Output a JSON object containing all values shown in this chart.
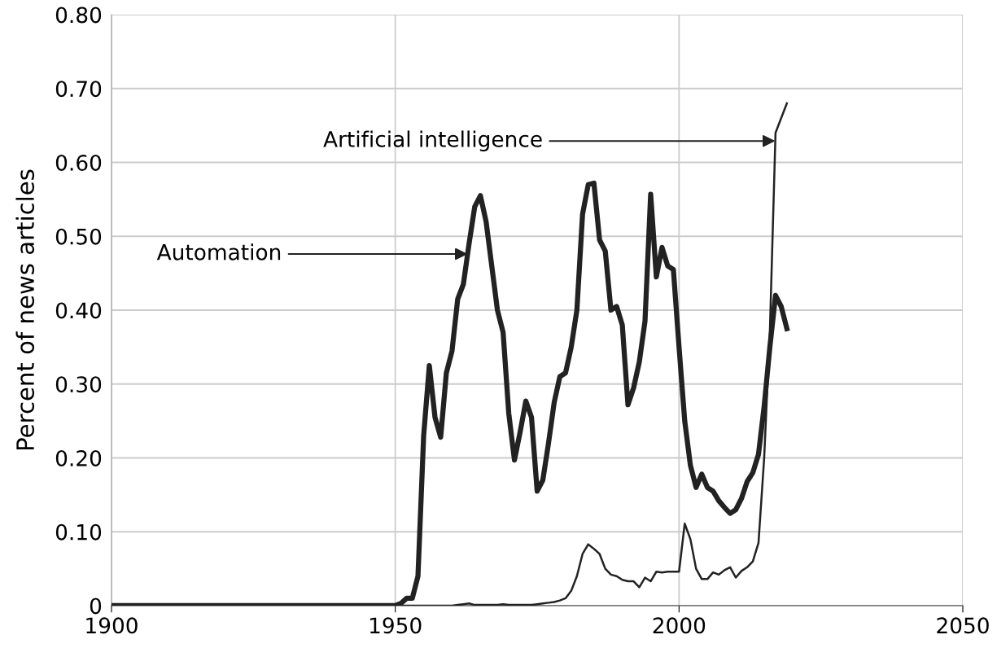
{
  "chart_data": {
    "type": "line",
    "ylabel": "Percent of news articles",
    "xlim": [
      1900,
      2050
    ],
    "xticks": [
      1900,
      1950,
      2000,
      2050
    ],
    "ylim": [
      0,
      0.8
    ],
    "yticks": [
      0,
      {
        "value": 0.1,
        "label": "0.10"
      },
      {
        "value": 0.2,
        "label": "0.20"
      },
      {
        "value": 0.3,
        "label": "0.30"
      },
      {
        "value": 0.4,
        "label": "0.40"
      },
      {
        "value": 0.5,
        "label": "0.50"
      },
      {
        "value": 0.6,
        "label": "0.60"
      },
      {
        "value": 0.7,
        "label": "0.70"
      },
      {
        "value": 0.8,
        "label": "0.80"
      }
    ],
    "grid": true,
    "marker": "none",
    "line_style": "solid",
    "x": [
      1900,
      1920,
      1940,
      1950,
      1951,
      1952,
      1953,
      1954,
      1955,
      1956,
      1957,
      1958,
      1959,
      1960,
      1961,
      1962,
      1963,
      1964,
      1965,
      1966,
      1967,
      1968,
      1969,
      1970,
      1971,
      1972,
      1973,
      1974,
      1975,
      1976,
      1977,
      1978,
      1979,
      1980,
      1981,
      1982,
      1983,
      1984,
      1985,
      1986,
      1987,
      1988,
      1989,
      1990,
      1991,
      1992,
      1993,
      1994,
      1995,
      1996,
      1997,
      1998,
      1999,
      2000,
      2001,
      2002,
      2003,
      2004,
      2005,
      2006,
      2007,
      2008,
      2009,
      2010,
      2011,
      2012,
      2013,
      2014,
      2015,
      2016,
      2017,
      2018,
      2019
    ],
    "series": [
      {
        "color": "#222222",
        "values": [
          0,
          0,
          0,
          0,
          0.003,
          0.01,
          0.01,
          0.04,
          0.23,
          0.325,
          0.255,
          0.228,
          0.315,
          0.345,
          0.415,
          0.435,
          0.49,
          0.54,
          0.555,
          0.52,
          0.46,
          0.4,
          0.37,
          0.26,
          0.197,
          0.235,
          0.277,
          0.255,
          0.155,
          0.17,
          0.22,
          0.275,
          0.31,
          0.315,
          0.35,
          0.4,
          0.53,
          0.57,
          0.572,
          0.495,
          0.48,
          0.4,
          0.405,
          0.38,
          0.272,
          0.295,
          0.33,
          0.385,
          0.557,
          0.445,
          0.485,
          0.46,
          0.455,
          0.35,
          0.25,
          0.19,
          0.16,
          0.178,
          0.16,
          0.155,
          0.142,
          0.133,
          0.125,
          0.13,
          0.145,
          0.168,
          0.18,
          0.205,
          0.27,
          0.35,
          0.42,
          0.405,
          0.375
        ]
      },
      {
        "color": "#222222",
        "values": [
          0,
          0,
          0,
          0,
          0,
          0,
          0,
          0,
          0,
          0,
          0,
          0,
          0,
          0,
          0.001,
          0.002,
          0.003,
          0.001,
          0.001,
          0.001,
          0.001,
          0.001,
          0.002,
          0.001,
          0.001,
          0.001,
          0.001,
          0.001,
          0.002,
          0.003,
          0.004,
          0.005,
          0.007,
          0.01,
          0.02,
          0.04,
          0.07,
          0.083,
          0.077,
          0.07,
          0.05,
          0.042,
          0.04,
          0.035,
          0.033,
          0.033,
          0.025,
          0.038,
          0.033,
          0.046,
          0.045,
          0.046,
          0.046,
          0.046,
          0.111,
          0.09,
          0.05,
          0.036,
          0.036,
          0.045,
          0.042,
          0.048,
          0.052,
          0.038,
          0.047,
          0.052,
          0.06,
          0.085,
          0.2,
          0.37,
          0.64,
          0.66,
          0.68
        ]
      }
    ],
    "annotations": [
      {
        "text": "Automation",
        "x": 1962.75,
        "y": 0.476
      },
      {
        "text": "Artificial intelligence",
        "x": 2016.96,
        "y": 0.629
      }
    ]
  }
}
